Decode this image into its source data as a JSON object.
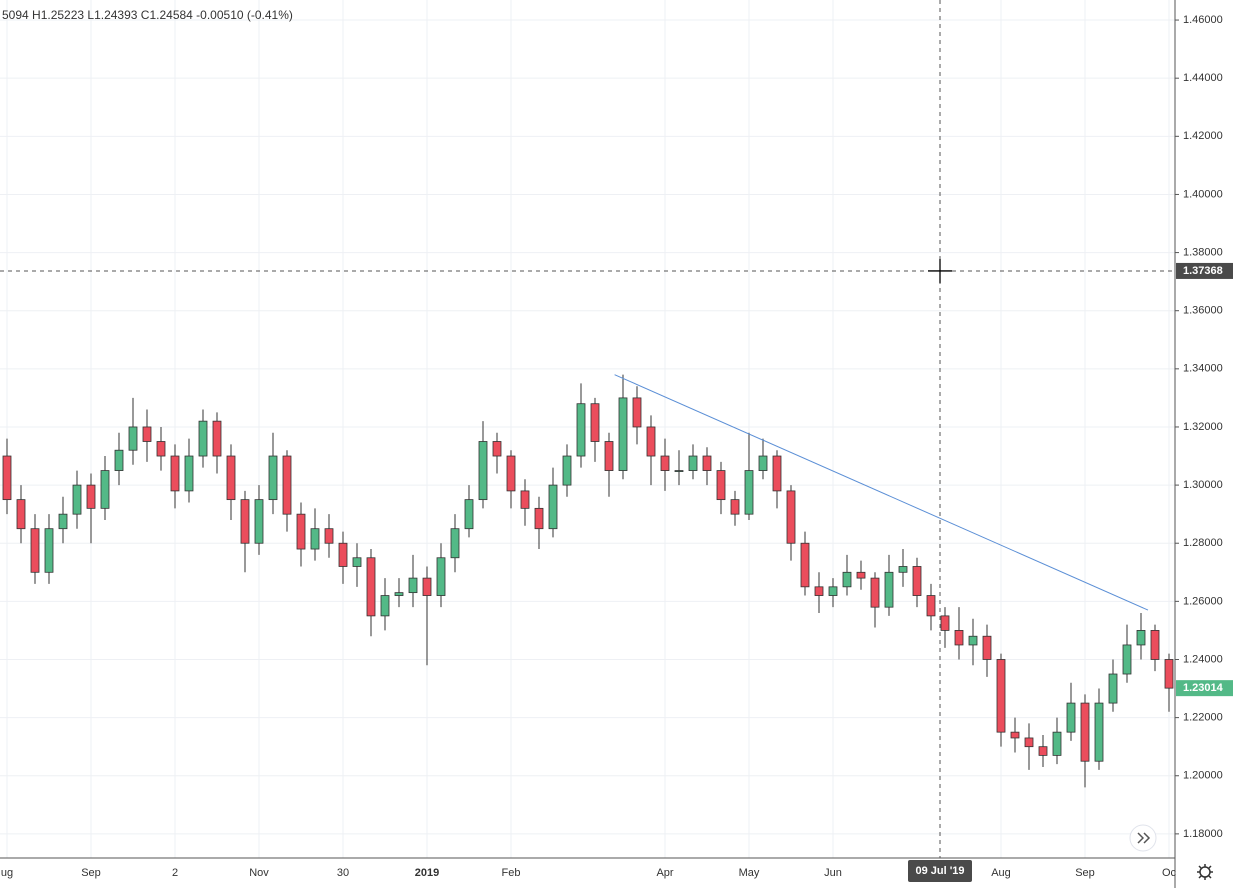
{
  "chart_data": {
    "type": "candlestick",
    "header": "5094  H1.25223  L1.24393  C1.24584  -0.00510 (-0.41%)",
    "categories": [
      "ug",
      null,
      null,
      null,
      null,
      null,
      "Sep",
      null,
      null,
      null,
      null,
      null,
      "2",
      null,
      null,
      null,
      null,
      null,
      "Nov",
      null,
      null,
      null,
      null,
      null,
      "30",
      null,
      null,
      null,
      null,
      null,
      "2019",
      null,
      null,
      null,
      null,
      null,
      "Feb",
      null,
      null,
      null,
      null,
      null,
      null,
      null,
      null,
      null,
      null,
      "Apr",
      null,
      null,
      null,
      null,
      null,
      "May",
      null,
      null,
      null,
      null,
      null,
      "Jun",
      null,
      null,
      null,
      null,
      null,
      null,
      null,
      null,
      null,
      null,
      null,
      "Aug",
      null,
      null,
      null,
      null,
      null,
      "Sep",
      null,
      null,
      null,
      null,
      null,
      "Oc"
    ],
    "open": [
      1.31,
      1.295,
      1.285,
      1.27,
      1.285,
      1.29,
      1.3,
      1.292,
      1.305,
      1.312,
      1.32,
      1.315,
      1.31,
      1.298,
      1.31,
      1.322,
      1.31,
      1.295,
      1.28,
      1.295,
      1.31,
      1.29,
      1.278,
      1.285,
      1.28,
      1.272,
      1.275,
      1.255,
      1.262,
      1.263,
      1.268,
      1.262,
      1.275,
      1.285,
      1.295,
      1.315,
      1.31,
      1.298,
      1.292,
      1.285,
      1.3,
      1.31,
      1.328,
      1.315,
      1.305,
      1.33,
      1.32,
      1.31,
      1.305,
      1.305,
      1.31,
      1.305,
      1.295,
      1.29,
      1.305,
      1.31,
      1.298,
      1.28,
      1.265,
      1.262,
      1.265,
      1.27,
      1.268,
      1.258,
      1.27,
      1.272,
      1.262,
      1.255,
      1.25,
      1.245,
      1.248,
      1.24,
      1.215,
      1.213,
      1.21,
      1.207,
      1.215,
      1.225,
      1.205,
      1.225,
      1.235,
      1.245,
      1.25,
      1.24
    ],
    "high": [
      1.316,
      1.3,
      1.29,
      1.29,
      1.296,
      1.305,
      1.304,
      1.31,
      1.318,
      1.33,
      1.326,
      1.32,
      1.314,
      1.316,
      1.326,
      1.325,
      1.314,
      1.298,
      1.3,
      1.318,
      1.312,
      1.294,
      1.292,
      1.29,
      1.284,
      1.28,
      1.278,
      1.268,
      1.268,
      1.276,
      1.272,
      1.28,
      1.29,
      1.3,
      1.322,
      1.318,
      1.312,
      1.302,
      1.296,
      1.306,
      1.314,
      1.335,
      1.33,
      1.318,
      1.338,
      1.334,
      1.324,
      1.316,
      1.312,
      1.314,
      1.313,
      1.308,
      1.298,
      1.318,
      1.316,
      1.312,
      1.3,
      1.284,
      1.27,
      1.268,
      1.276,
      1.274,
      1.27,
      1.276,
      1.278,
      1.275,
      1.266,
      1.258,
      1.258,
      1.254,
      1.252,
      1.242,
      1.22,
      1.218,
      1.214,
      1.22,
      1.232,
      1.228,
      1.23,
      1.24,
      1.252,
      1.256,
      1.252,
      1.242
    ],
    "low": [
      1.29,
      1.28,
      1.266,
      1.266,
      1.28,
      1.285,
      1.28,
      1.288,
      1.3,
      1.307,
      1.308,
      1.305,
      1.292,
      1.294,
      1.306,
      1.304,
      1.288,
      1.27,
      1.276,
      1.29,
      1.284,
      1.272,
      1.274,
      1.275,
      1.266,
      1.265,
      1.248,
      1.25,
      1.258,
      1.258,
      1.238,
      1.258,
      1.27,
      1.282,
      1.292,
      1.304,
      1.292,
      1.286,
      1.278,
      1.282,
      1.296,
      1.306,
      1.308,
      1.296,
      1.302,
      1.314,
      1.3,
      1.298,
      1.3,
      1.302,
      1.3,
      1.29,
      1.286,
      1.288,
      1.302,
      1.292,
      1.274,
      1.262,
      1.256,
      1.258,
      1.262,
      1.264,
      1.251,
      1.255,
      1.265,
      1.258,
      1.25,
      1.244,
      1.24,
      1.238,
      1.234,
      1.21,
      1.208,
      1.202,
      1.203,
      1.204,
      1.212,
      1.196,
      1.202,
      1.222,
      1.232,
      1.24,
      1.236,
      1.222
    ],
    "close": [
      1.295,
      1.285,
      1.27,
      1.285,
      1.29,
      1.3,
      1.292,
      1.305,
      1.312,
      1.32,
      1.315,
      1.31,
      1.298,
      1.31,
      1.322,
      1.31,
      1.295,
      1.28,
      1.295,
      1.31,
      1.29,
      1.278,
      1.285,
      1.28,
      1.272,
      1.275,
      1.255,
      1.262,
      1.263,
      1.268,
      1.262,
      1.275,
      1.285,
      1.295,
      1.315,
      1.31,
      1.298,
      1.292,
      1.285,
      1.3,
      1.31,
      1.328,
      1.315,
      1.305,
      1.33,
      1.32,
      1.31,
      1.305,
      1.305,
      1.31,
      1.305,
      1.295,
      1.29,
      1.305,
      1.31,
      1.298,
      1.28,
      1.265,
      1.262,
      1.265,
      1.27,
      1.268,
      1.258,
      1.27,
      1.272,
      1.262,
      1.255,
      1.25,
      1.245,
      1.248,
      1.24,
      1.215,
      1.213,
      1.21,
      1.207,
      1.215,
      1.225,
      1.205,
      1.225,
      1.235,
      1.245,
      1.25,
      1.24,
      1.23014
    ],
    "up_color": "#53b987",
    "down_color": "#eb4d5c",
    "trendline": {
      "x": [
        43.4,
        81.5
      ],
      "values": [
        1.338,
        1.257
      ],
      "color": "#5b8fd6"
    },
    "crosshair": {
      "date": "09 Jul '19",
      "price": 1.37368
    },
    "ylim": [
      1.1717,
      1.4669
    ],
    "yticks": [
      {
        "value": 1.18,
        "label": "1.18000"
      },
      {
        "value": 1.2,
        "label": "1.20000"
      },
      {
        "value": 1.22,
        "label": "1.22000"
      },
      {
        "value": 1.24,
        "label": "1.24000"
      },
      {
        "value": 1.26,
        "label": "1.26000"
      },
      {
        "value": 1.28,
        "label": "1.28000"
      },
      {
        "value": 1.3,
        "label": "1.30000"
      },
      {
        "value": 1.32,
        "label": "1.32000"
      },
      {
        "value": 1.34,
        "label": "1.34000"
      },
      {
        "value": 1.36,
        "label": "1.36000"
      },
      {
        "value": 1.38,
        "label": "1.38000"
      },
      {
        "value": 1.4,
        "label": "1.40000"
      },
      {
        "value": 1.42,
        "label": "1.42000"
      },
      {
        "value": 1.44,
        "label": "1.44000"
      },
      {
        "value": 1.46,
        "label": "1.46000"
      }
    ],
    "grid": true
  }
}
